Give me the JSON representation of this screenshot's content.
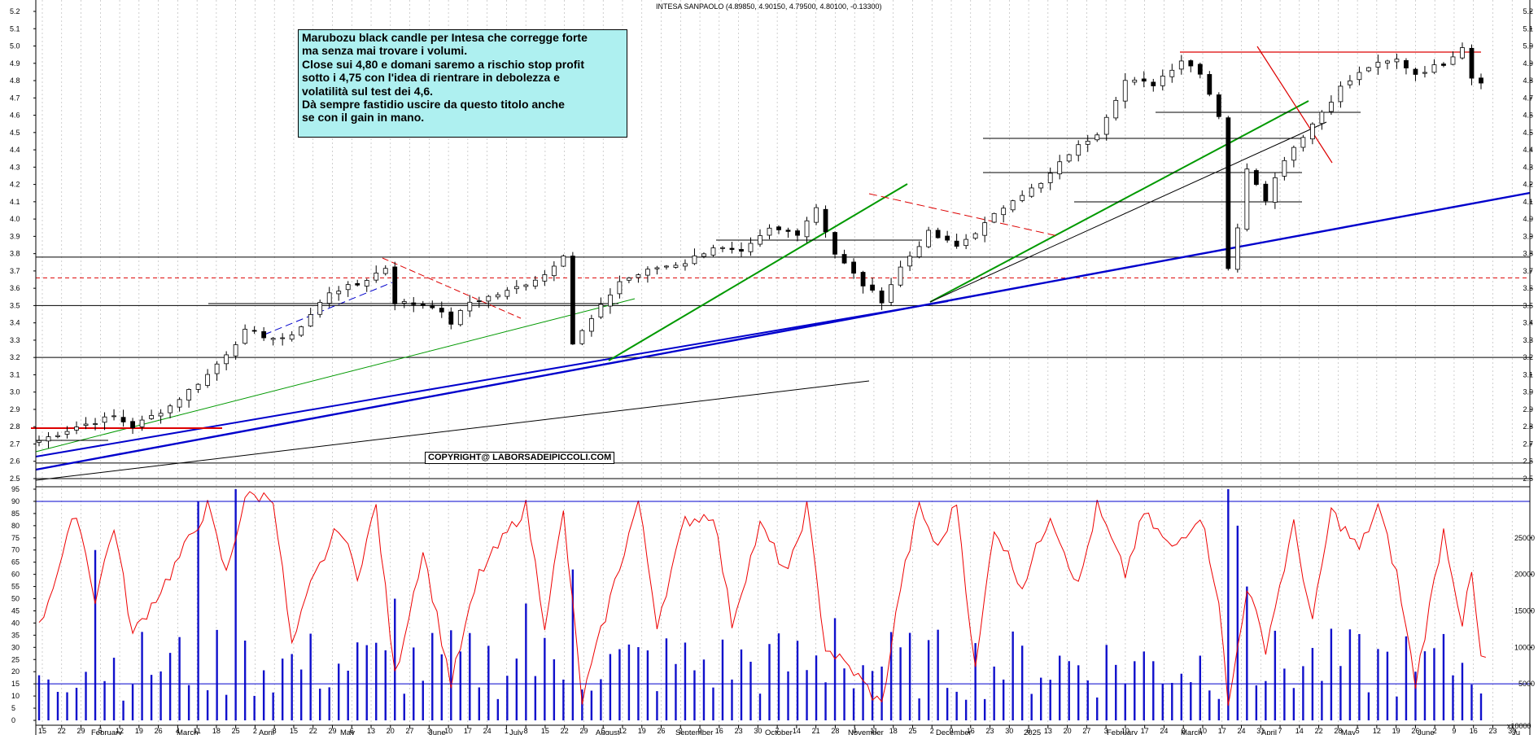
{
  "header": {
    "title": "INTESA SANPAOLO (4.89850, 4.90150, 4.79500, 4.80100, -0.13300)"
  },
  "annotation": {
    "lines": [
      "Marubozu black candle per Intesa che corregge forte",
      "ma senza mai trovare i volumi.",
      "Close sui 4,80 e domani saremo a rischio stop profit",
      "sotto i 4,75 con l'idea di rientrare in debolezza e",
      "volatilità sul test dei 4,6.",
      "Dà sempre fastidio uscire da questo titolo anche",
      "se con il gain in mano."
    ]
  },
  "copyright": "COPYRIGHT@ LABORSADEIPICCOLI.COM",
  "colors": {
    "background": "#ffffff",
    "candle": "#000000",
    "blue": "#0000cc",
    "green": "#009900",
    "red": "#dd0000",
    "volume": "#1010cc",
    "oscillator": "#ee0000",
    "note_bg": "#aef0f0"
  },
  "chart_data": [
    {
      "type": "line",
      "title": "INTESA SANPAOLO (4.89850, 4.90150, 4.79500, 4.80100, -0.13300)",
      "ylim": [
        2.5,
        5.2
      ],
      "y_ticks": [
        "5.2",
        "5.1",
        "5.0",
        "4.9",
        "4.8",
        "4.7",
        "4.6",
        "4.5",
        "4.4",
        "4.3",
        "4.2",
        "4.1",
        "4.0",
        "3.9",
        "3.8",
        "3.7",
        "3.6",
        "3.5",
        "3.4",
        "3.3",
        "3.2",
        "3.1",
        "3.0",
        "2.9",
        "2.8",
        "2.7",
        "2.6",
        "2.5"
      ],
      "y_tick_values": [
        5.2,
        5.1,
        5.0,
        4.9,
        4.8,
        4.7,
        4.6,
        4.5,
        4.4,
        4.3,
        4.2,
        4.1,
        4.0,
        3.9,
        3.8,
        3.7,
        3.6,
        3.5,
        3.4,
        3.3,
        3.2,
        3.1,
        3.0,
        2.9,
        2.8,
        2.7,
        2.6,
        2.5
      ],
      "x_day_ticks": [
        "15",
        "22",
        "29",
        "5",
        "12",
        "19",
        "26",
        "4",
        "11",
        "18",
        "25",
        "2",
        "8",
        "15",
        "22",
        "29",
        "6",
        "13",
        "20",
        "27",
        "3",
        "10",
        "17",
        "24",
        "1",
        "8",
        "15",
        "22",
        "29",
        "5",
        "12",
        "19",
        "26",
        "2",
        "9",
        "16",
        "23",
        "30",
        "7",
        "14",
        "21",
        "28",
        "4",
        "11",
        "18",
        "25",
        "2",
        "9",
        "16",
        "23",
        "30",
        "6",
        "13",
        "20",
        "27",
        "3",
        "10",
        "17",
        "24",
        "3",
        "10",
        "17",
        "24",
        "31",
        "7",
        "14",
        "22",
        "28",
        "5",
        "12",
        "19",
        "26",
        "2",
        "9",
        "16",
        "23",
        "30"
      ],
      "x_months": [
        "February",
        "March",
        "April",
        "May",
        "June",
        "July",
        "August",
        "September",
        "October",
        "November",
        "December",
        "2025",
        "February",
        "March",
        "April",
        "May",
        "June",
        "Ju"
      ],
      "close_anchors": [
        {
          "t": 0,
          "v": 2.72
        },
        {
          "t": 4,
          "v": 2.8
        },
        {
          "t": 8,
          "v": 2.86
        },
        {
          "t": 10,
          "v": 2.8
        },
        {
          "t": 14,
          "v": 2.92
        },
        {
          "t": 18,
          "v": 3.1
        },
        {
          "t": 22,
          "v": 3.35
        },
        {
          "t": 26,
          "v": 3.3
        },
        {
          "t": 28,
          "v": 3.38
        },
        {
          "t": 31,
          "v": 3.58
        },
        {
          "t": 34,
          "v": 3.62
        },
        {
          "t": 37,
          "v": 3.72
        },
        {
          "t": 38,
          "v": 3.52
        },
        {
          "t": 42,
          "v": 3.5
        },
        {
          "t": 44,
          "v": 3.4
        },
        {
          "t": 46,
          "v": 3.52
        },
        {
          "t": 50,
          "v": 3.58
        },
        {
          "t": 54,
          "v": 3.68
        },
        {
          "t": 56,
          "v": 3.8
        },
        {
          "t": 57,
          "v": 3.28
        },
        {
          "t": 59,
          "v": 3.42
        },
        {
          "t": 62,
          "v": 3.64
        },
        {
          "t": 66,
          "v": 3.72
        },
        {
          "t": 69,
          "v": 3.75
        },
        {
          "t": 72,
          "v": 3.84
        },
        {
          "t": 75,
          "v": 3.8
        },
        {
          "t": 78,
          "v": 3.94
        },
        {
          "t": 81,
          "v": 3.92
        },
        {
          "t": 83,
          "v": 4.07
        },
        {
          "t": 85,
          "v": 3.8
        },
        {
          "t": 88,
          "v": 3.62
        },
        {
          "t": 90,
          "v": 3.53
        },
        {
          "t": 92,
          "v": 3.72
        },
        {
          "t": 95,
          "v": 3.92
        },
        {
          "t": 98,
          "v": 3.84
        },
        {
          "t": 101,
          "v": 3.97
        },
        {
          "t": 104,
          "v": 4.12
        },
        {
          "t": 107,
          "v": 4.2
        },
        {
          "t": 110,
          "v": 4.38
        },
        {
          "t": 113,
          "v": 4.5
        },
        {
          "t": 116,
          "v": 4.8
        },
        {
          "t": 119,
          "v": 4.78
        },
        {
          "t": 122,
          "v": 4.92
        },
        {
          "t": 124,
          "v": 4.85
        },
        {
          "t": 126,
          "v": 4.6
        },
        {
          "t": 127,
          "v": 3.72
        },
        {
          "t": 128,
          "v": 3.94
        },
        {
          "t": 129,
          "v": 4.3
        },
        {
          "t": 131,
          "v": 4.12
        },
        {
          "t": 133,
          "v": 4.35
        },
        {
          "t": 136,
          "v": 4.55
        },
        {
          "t": 139,
          "v": 4.76
        },
        {
          "t": 142,
          "v": 4.88
        },
        {
          "t": 145,
          "v": 4.92
        },
        {
          "t": 147,
          "v": 4.84
        },
        {
          "t": 150,
          "v": 4.9
        },
        {
          "t": 152,
          "v": 5.0
        },
        {
          "t": 153,
          "v": 4.82
        },
        {
          "t": 154,
          "v": 4.8
        }
      ],
      "horizontal_levels": [
        {
          "price": 3.78,
          "color": "#000000",
          "dash": false
        },
        {
          "price": 3.2,
          "color": "#000000",
          "dash": false
        },
        {
          "price": 2.59,
          "color": "#000000",
          "dash": false
        },
        {
          "price": 3.5,
          "color": "#000000",
          "dash": false
        },
        {
          "price": 3.66,
          "color": "#dd0000",
          "dash": true
        }
      ]
    },
    {
      "type": "bar",
      "ylim": [
        0,
        95
      ],
      "y_ticks": [
        "95",
        "90",
        "85",
        "80",
        "75",
        "70",
        "65",
        "60",
        "55",
        "50",
        "45",
        "40",
        "35",
        "30",
        "25",
        "20",
        "15",
        "10",
        "5",
        "0"
      ],
      "y_tick_values": [
        95,
        90,
        85,
        80,
        75,
        70,
        65,
        60,
        55,
        50,
        45,
        40,
        35,
        30,
        25,
        20,
        15,
        10,
        5,
        0
      ],
      "right_ticks": [
        "25000",
        "20000",
        "15000",
        "10000",
        "5000"
      ],
      "right_tick_values": [
        25000,
        20000,
        15000,
        10000,
        5000
      ],
      "reference_levels": [
        90,
        15
      ],
      "unit_label": "x10000",
      "oscillator_anchors": [
        {
          "t": 0,
          "v": 38
        },
        {
          "t": 4,
          "v": 86
        },
        {
          "t": 6,
          "v": 50
        },
        {
          "t": 8,
          "v": 80
        },
        {
          "t": 10,
          "v": 35
        },
        {
          "t": 14,
          "v": 60
        },
        {
          "t": 18,
          "v": 88
        },
        {
          "t": 20,
          "v": 60
        },
        {
          "t": 22,
          "v": 92
        },
        {
          "t": 25,
          "v": 92
        },
        {
          "t": 27,
          "v": 30
        },
        {
          "t": 29,
          "v": 55
        },
        {
          "t": 32,
          "v": 80
        },
        {
          "t": 34,
          "v": 60
        },
        {
          "t": 36,
          "v": 88
        },
        {
          "t": 38,
          "v": 18
        },
        {
          "t": 41,
          "v": 70
        },
        {
          "t": 44,
          "v": 15
        },
        {
          "t": 47,
          "v": 60
        },
        {
          "t": 52,
          "v": 88
        },
        {
          "t": 54,
          "v": 40
        },
        {
          "t": 56,
          "v": 85
        },
        {
          "t": 58,
          "v": 8
        },
        {
          "t": 61,
          "v": 50
        },
        {
          "t": 64,
          "v": 90
        },
        {
          "t": 66,
          "v": 40
        },
        {
          "t": 69,
          "v": 82
        },
        {
          "t": 72,
          "v": 85
        },
        {
          "t": 74,
          "v": 40
        },
        {
          "t": 77,
          "v": 80
        },
        {
          "t": 80,
          "v": 60
        },
        {
          "t": 82,
          "v": 88
        },
        {
          "t": 84,
          "v": 30
        },
        {
          "t": 87,
          "v": 20
        },
        {
          "t": 90,
          "v": 6
        },
        {
          "t": 92,
          "v": 55
        },
        {
          "t": 94,
          "v": 88
        },
        {
          "t": 96,
          "v": 70
        },
        {
          "t": 98,
          "v": 90
        },
        {
          "t": 100,
          "v": 20
        },
        {
          "t": 102,
          "v": 80
        },
        {
          "t": 105,
          "v": 55
        },
        {
          "t": 108,
          "v": 85
        },
        {
          "t": 111,
          "v": 55
        },
        {
          "t": 113,
          "v": 88
        },
        {
          "t": 116,
          "v": 60
        },
        {
          "t": 118,
          "v": 85
        },
        {
          "t": 121,
          "v": 70
        },
        {
          "t": 124,
          "v": 85
        },
        {
          "t": 126,
          "v": 50
        },
        {
          "t": 127,
          "v": 5
        },
        {
          "t": 129,
          "v": 55
        },
        {
          "t": 131,
          "v": 30
        },
        {
          "t": 134,
          "v": 80
        },
        {
          "t": 136,
          "v": 40
        },
        {
          "t": 138,
          "v": 86
        },
        {
          "t": 141,
          "v": 70
        },
        {
          "t": 143,
          "v": 88
        },
        {
          "t": 145,
          "v": 60
        },
        {
          "t": 147,
          "v": 15
        },
        {
          "t": 150,
          "v": 78
        },
        {
          "t": 152,
          "v": 40
        },
        {
          "t": 153,
          "v": 60
        },
        {
          "t": 154,
          "v": 25
        }
      ],
      "volume_spikes": [
        {
          "t": 6,
          "v": 70
        },
        {
          "t": 17,
          "v": 90
        },
        {
          "t": 21,
          "v": 95
        },
        {
          "t": 38,
          "v": 50
        },
        {
          "t": 52,
          "v": 48
        },
        {
          "t": 57,
          "v": 62
        },
        {
          "t": 85,
          "v": 42
        },
        {
          "t": 127,
          "v": 95
        },
        {
          "t": 128,
          "v": 80
        },
        {
          "t": 129,
          "v": 55
        },
        {
          "t": 147,
          "v": 20
        }
      ]
    }
  ]
}
